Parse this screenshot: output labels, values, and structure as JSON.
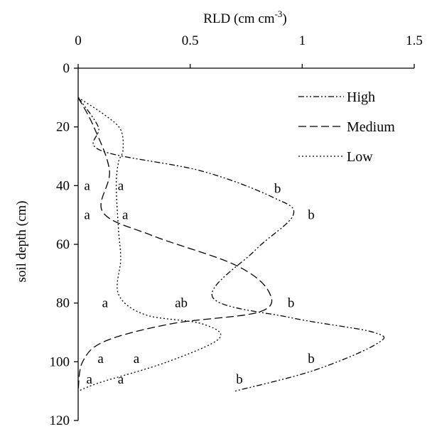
{
  "chart_data": {
    "type": "line",
    "orientation": "depth-profile",
    "xlabel": "RLD (cm cm",
    "xlabel_sup": "-3",
    "xlabel_close": ")",
    "ylabel": "soil depth (cm)",
    "x_axis_position": "top",
    "y_inverted": true,
    "xlim": [
      0,
      1.5
    ],
    "ylim": [
      0,
      120
    ],
    "x_ticks": [
      0,
      0.5,
      1,
      1.5
    ],
    "x_tick_labels": [
      "0",
      "0.5",
      "1",
      "1.5"
    ],
    "y_ticks": [
      0,
      20,
      40,
      60,
      80,
      100,
      120
    ],
    "y_tick_labels": [
      "0",
      "20",
      "40",
      "60",
      "80",
      "100",
      "120"
    ],
    "grid": false,
    "legend_position": "top-right",
    "series": [
      {
        "name": "High",
        "dash": "dash-dot-dot",
        "points": [
          [
            0.0,
            10
          ],
          [
            0.09,
            20
          ],
          [
            0.1,
            28
          ],
          [
            0.55,
            35
          ],
          [
            0.87,
            44
          ],
          [
            0.96,
            50
          ],
          [
            0.79,
            62
          ],
          [
            0.6,
            78
          ],
          [
            0.95,
            85
          ],
          [
            1.32,
            90
          ],
          [
            1.33,
            94
          ],
          [
            1.05,
            103
          ],
          [
            0.7,
            110
          ]
        ]
      },
      {
        "name": "Medium",
        "dash": "long-dash",
        "points": [
          [
            0.0,
            10
          ],
          [
            0.07,
            20
          ],
          [
            0.14,
            35
          ],
          [
            0.11,
            49
          ],
          [
            0.33,
            57
          ],
          [
            0.7,
            67
          ],
          [
            0.85,
            76
          ],
          [
            0.81,
            83
          ],
          [
            0.42,
            87
          ],
          [
            0.12,
            93
          ],
          [
            0.02,
            100
          ],
          [
            0.0,
            110
          ]
        ]
      },
      {
        "name": "Low",
        "dash": "dotted",
        "points": [
          [
            0.0,
            10
          ],
          [
            0.12,
            16
          ],
          [
            0.19,
            21
          ],
          [
            0.2,
            28
          ],
          [
            0.18,
            32
          ],
          [
            0.17,
            40
          ],
          [
            0.18,
            55
          ],
          [
            0.19,
            65
          ],
          [
            0.18,
            77
          ],
          [
            0.3,
            84
          ],
          [
            0.55,
            87
          ],
          [
            0.63,
            92
          ],
          [
            0.4,
            100
          ],
          [
            0.1,
            107
          ],
          [
            0.0,
            110
          ]
        ]
      }
    ],
    "annotations": [
      {
        "text": "a",
        "x": 0.04,
        "y": 40
      },
      {
        "text": "a",
        "x": 0.19,
        "y": 40
      },
      {
        "text": "b",
        "x": 0.89,
        "y": 41
      },
      {
        "text": "a",
        "x": 0.04,
        "y": 50
      },
      {
        "text": "a",
        "x": 0.21,
        "y": 50
      },
      {
        "text": "b",
        "x": 1.04,
        "y": 50
      },
      {
        "text": "a",
        "x": 0.12,
        "y": 80
      },
      {
        "text": "ab",
        "x": 0.46,
        "y": 80
      },
      {
        "text": "b",
        "x": 0.95,
        "y": 80
      },
      {
        "text": "a",
        "x": 0.1,
        "y": 99
      },
      {
        "text": "a",
        "x": 0.26,
        "y": 99
      },
      {
        "text": "b",
        "x": 1.04,
        "y": 99
      },
      {
        "text": "a",
        "x": 0.05,
        "y": 106
      },
      {
        "text": "a",
        "x": 0.19,
        "y": 106
      },
      {
        "text": "b",
        "x": 0.72,
        "y": 106
      }
    ]
  }
}
